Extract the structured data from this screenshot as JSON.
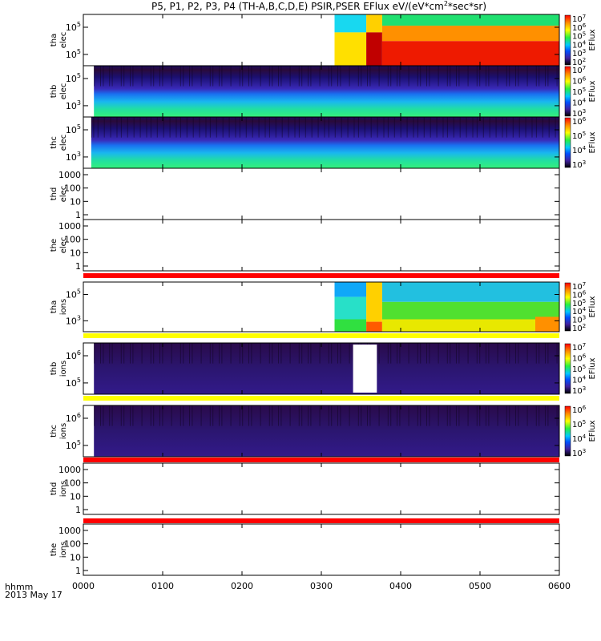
{
  "chart_data": {
    "type": "heatmap",
    "title": "P5, P1, P2, P3, P4 (TH-A,B,C,D,E) PSIR,PSER EFlux eV/(eV*cm2*sec*sr)",
    "title_superscript": "2",
    "title_suffix": "*sec*sr)",
    "title_prefix": "P5, P1, P2, P3, P4 (TH-A,B,C,D,E) PSIR,PSER EFlux eV/(eV*cm",
    "x_axis": {
      "label": "hhmm",
      "date": "2013 May 17",
      "range_minutes": [
        0,
        360
      ],
      "ticks": [
        {
          "minute": 0,
          "label": "0000"
        },
        {
          "minute": 60,
          "label": "0100"
        },
        {
          "minute": 120,
          "label": "0200"
        },
        {
          "minute": 180,
          "label": "0300"
        },
        {
          "minute": 240,
          "label": "0400"
        },
        {
          "minute": 300,
          "label": "0500"
        },
        {
          "minute": 360,
          "label": "0600"
        }
      ]
    },
    "colorbar_label": "EFlux",
    "panels": [
      {
        "probe": "tha",
        "product": "elec",
        "kind": "spectrogram",
        "yscale": "log",
        "ytick_labels": [
          "10",
          "10"
        ],
        "ytick_exps": [
          "5",
          "5"
        ],
        "data_start_minute": 190,
        "colorbar_ticks": [
          "10",
          "10",
          "10",
          "10",
          "10",
          "10"
        ],
        "colorbar_exps": [
          "7",
          "6",
          "5",
          "4",
          "3",
          "2"
        ],
        "colorbar_extra": "10",
        "colorbar_extra_exp": "2"
      },
      {
        "probe": "thb",
        "product": "elec",
        "kind": "spectrogram",
        "yscale": "log",
        "ytick_labels": [
          "10",
          "10"
        ],
        "ytick_exps": [
          "5",
          "3"
        ],
        "data_start_minute": 8,
        "colorbar_ticks": [
          "10",
          "10",
          "10",
          "10",
          "10"
        ],
        "colorbar_exps": [
          "7",
          "6",
          "5",
          "4",
          "3"
        ]
      },
      {
        "probe": "thc",
        "product": "elec",
        "kind": "spectrogram",
        "yscale": "log",
        "ytick_labels": [
          "10",
          "10"
        ],
        "ytick_exps": [
          "5",
          "3"
        ],
        "data_start_minute": 6,
        "colorbar_ticks": [
          "10",
          "10",
          "10",
          "10"
        ],
        "colorbar_exps": [
          "6",
          "5",
          "4",
          "3"
        ]
      },
      {
        "probe": "thd",
        "product": "elec",
        "kind": "empty",
        "yscale": "log",
        "ytick_labels": [
          "1000",
          "100",
          "10",
          "1"
        ]
      },
      {
        "probe": "the",
        "product": "elec",
        "kind": "empty",
        "yscale": "log",
        "ytick_labels": [
          "1000",
          "100",
          "10",
          "1"
        ]
      },
      {
        "probe": "tha",
        "product": "ions",
        "kind": "spectrogram",
        "yscale": "log",
        "ytick_labels": [
          "10",
          "10"
        ],
        "ytick_exps": [
          "5",
          "3"
        ],
        "data_start_minute": 190,
        "colorbar_ticks": [
          "10",
          "10",
          "10",
          "10",
          "10",
          "10"
        ],
        "colorbar_exps": [
          "7",
          "6",
          "5",
          "4",
          "3",
          "2"
        ]
      },
      {
        "probe": "thb",
        "product": "ions",
        "kind": "spectrogram",
        "yscale": "log",
        "ytick_labels": [
          "10",
          "10"
        ],
        "ytick_exps": [
          "6",
          "5"
        ],
        "data_start_minute": 8,
        "gap_minutes": [
          204,
          222
        ],
        "colorbar_ticks": [
          "10",
          "10",
          "10",
          "10",
          "10"
        ],
        "colorbar_exps": [
          "7",
          "6",
          "5",
          "4",
          "3"
        ]
      },
      {
        "probe": "thc",
        "product": "ions",
        "kind": "spectrogram",
        "yscale": "log",
        "ytick_labels": [
          "10",
          "10"
        ],
        "ytick_exps": [
          "6",
          "5"
        ],
        "data_start_minute": 8,
        "colorbar_ticks": [
          "10",
          "10",
          "10",
          "10"
        ],
        "colorbar_exps": [
          "6",
          "5",
          "4",
          "3"
        ]
      },
      {
        "probe": "thd",
        "product": "ions",
        "kind": "empty",
        "yscale": "log",
        "ytick_labels": [
          "1000",
          "100",
          "10",
          "1"
        ]
      },
      {
        "probe": "the",
        "product": "ions",
        "kind": "empty",
        "yscale": "log",
        "ytick_labels": [
          "1000",
          "100",
          "10",
          "1"
        ]
      }
    ],
    "status_bars": [
      {
        "after_panel": 4,
        "color": "#ff0000"
      },
      {
        "after_panel": 5,
        "color": "#ffff00"
      },
      {
        "after_panel": 6,
        "color": "#ffff00"
      },
      {
        "after_panel": 7,
        "color": "#ff0000"
      },
      {
        "after_panel": 8,
        "color": "#ff0000"
      }
    ]
  }
}
